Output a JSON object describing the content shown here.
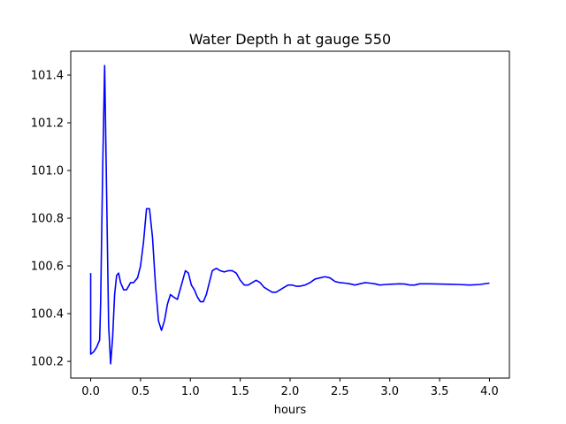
{
  "chart_data": {
    "type": "line",
    "title": "Water Depth h at gauge 550",
    "xlabel": "hours",
    "ylabel": "",
    "xlim": [
      -0.2,
      4.2
    ],
    "ylim": [
      100.13,
      101.5
    ],
    "xticks": [
      0.0,
      0.5,
      1.0,
      1.5,
      2.0,
      2.5,
      3.0,
      3.5,
      4.0
    ],
    "xtick_labels": [
      "0.0",
      "0.5",
      "1.0",
      "1.5",
      "2.0",
      "2.5",
      "3.0",
      "3.5",
      "4.0"
    ],
    "yticks": [
      100.2,
      100.4,
      100.6,
      100.8,
      101.0,
      101.2,
      101.4
    ],
    "ytick_labels": [
      "100.2",
      "100.4",
      "100.6",
      "100.8",
      "101.0",
      "101.2",
      "101.4"
    ],
    "grid": false,
    "legend": "none",
    "colors": {
      "series": "#0000ff",
      "frame": "#000000"
    },
    "series": [
      {
        "x": [
          0.0,
          0.0,
          0.03,
          0.06,
          0.09,
          0.1,
          0.12,
          0.14,
          0.16,
          0.18,
          0.2,
          0.22,
          0.24,
          0.26,
          0.28,
          0.3,
          0.33,
          0.36,
          0.4,
          0.43,
          0.47,
          0.5,
          0.53,
          0.56,
          0.59,
          0.62,
          0.65,
          0.68,
          0.71,
          0.74,
          0.77,
          0.8,
          0.83,
          0.87,
          0.91,
          0.95,
          0.98,
          1.01,
          1.04,
          1.07,
          1.1,
          1.13,
          1.16,
          1.19,
          1.22,
          1.26,
          1.3,
          1.34,
          1.38,
          1.42,
          1.46,
          1.5,
          1.54,
          1.58,
          1.62,
          1.66,
          1.7,
          1.74,
          1.78,
          1.82,
          1.86,
          1.9,
          1.94,
          1.98,
          2.02,
          2.06,
          2.1,
          2.15,
          2.2,
          2.25,
          2.3,
          2.35,
          2.4,
          2.45,
          2.5,
          2.55,
          2.6,
          2.65,
          2.7,
          2.75,
          2.8,
          2.85,
          2.9,
          2.95,
          3.0,
          3.05,
          3.1,
          3.15,
          3.2,
          3.25,
          3.3,
          3.4,
          3.5,
          3.6,
          3.7,
          3.8,
          3.9,
          4.0
        ],
        "y": [
          100.57,
          100.23,
          100.24,
          100.26,
          100.29,
          100.45,
          101.0,
          101.44,
          100.9,
          100.35,
          100.19,
          100.3,
          100.48,
          100.56,
          100.57,
          100.53,
          100.5,
          100.5,
          100.53,
          100.53,
          100.55,
          100.6,
          100.7,
          100.84,
          100.84,
          100.72,
          100.52,
          100.37,
          100.33,
          100.37,
          100.44,
          100.48,
          100.47,
          100.46,
          100.52,
          100.58,
          100.57,
          100.52,
          100.5,
          100.47,
          100.45,
          100.45,
          100.48,
          100.53,
          100.58,
          100.59,
          100.58,
          100.575,
          100.58,
          100.58,
          100.57,
          100.54,
          100.52,
          100.52,
          100.53,
          100.54,
          100.53,
          100.51,
          100.5,
          100.49,
          100.49,
          100.5,
          100.51,
          100.52,
          100.52,
          100.515,
          100.515,
          100.52,
          100.53,
          100.545,
          100.55,
          100.555,
          100.55,
          100.535,
          100.53,
          100.528,
          100.525,
          100.52,
          100.525,
          100.53,
          100.528,
          100.525,
          100.52,
          100.522,
          100.523,
          100.524,
          100.525,
          100.524,
          100.52,
          100.52,
          100.525,
          100.525,
          100.524,
          100.523,
          100.522,
          100.52,
          100.522,
          100.528
        ]
      }
    ]
  }
}
